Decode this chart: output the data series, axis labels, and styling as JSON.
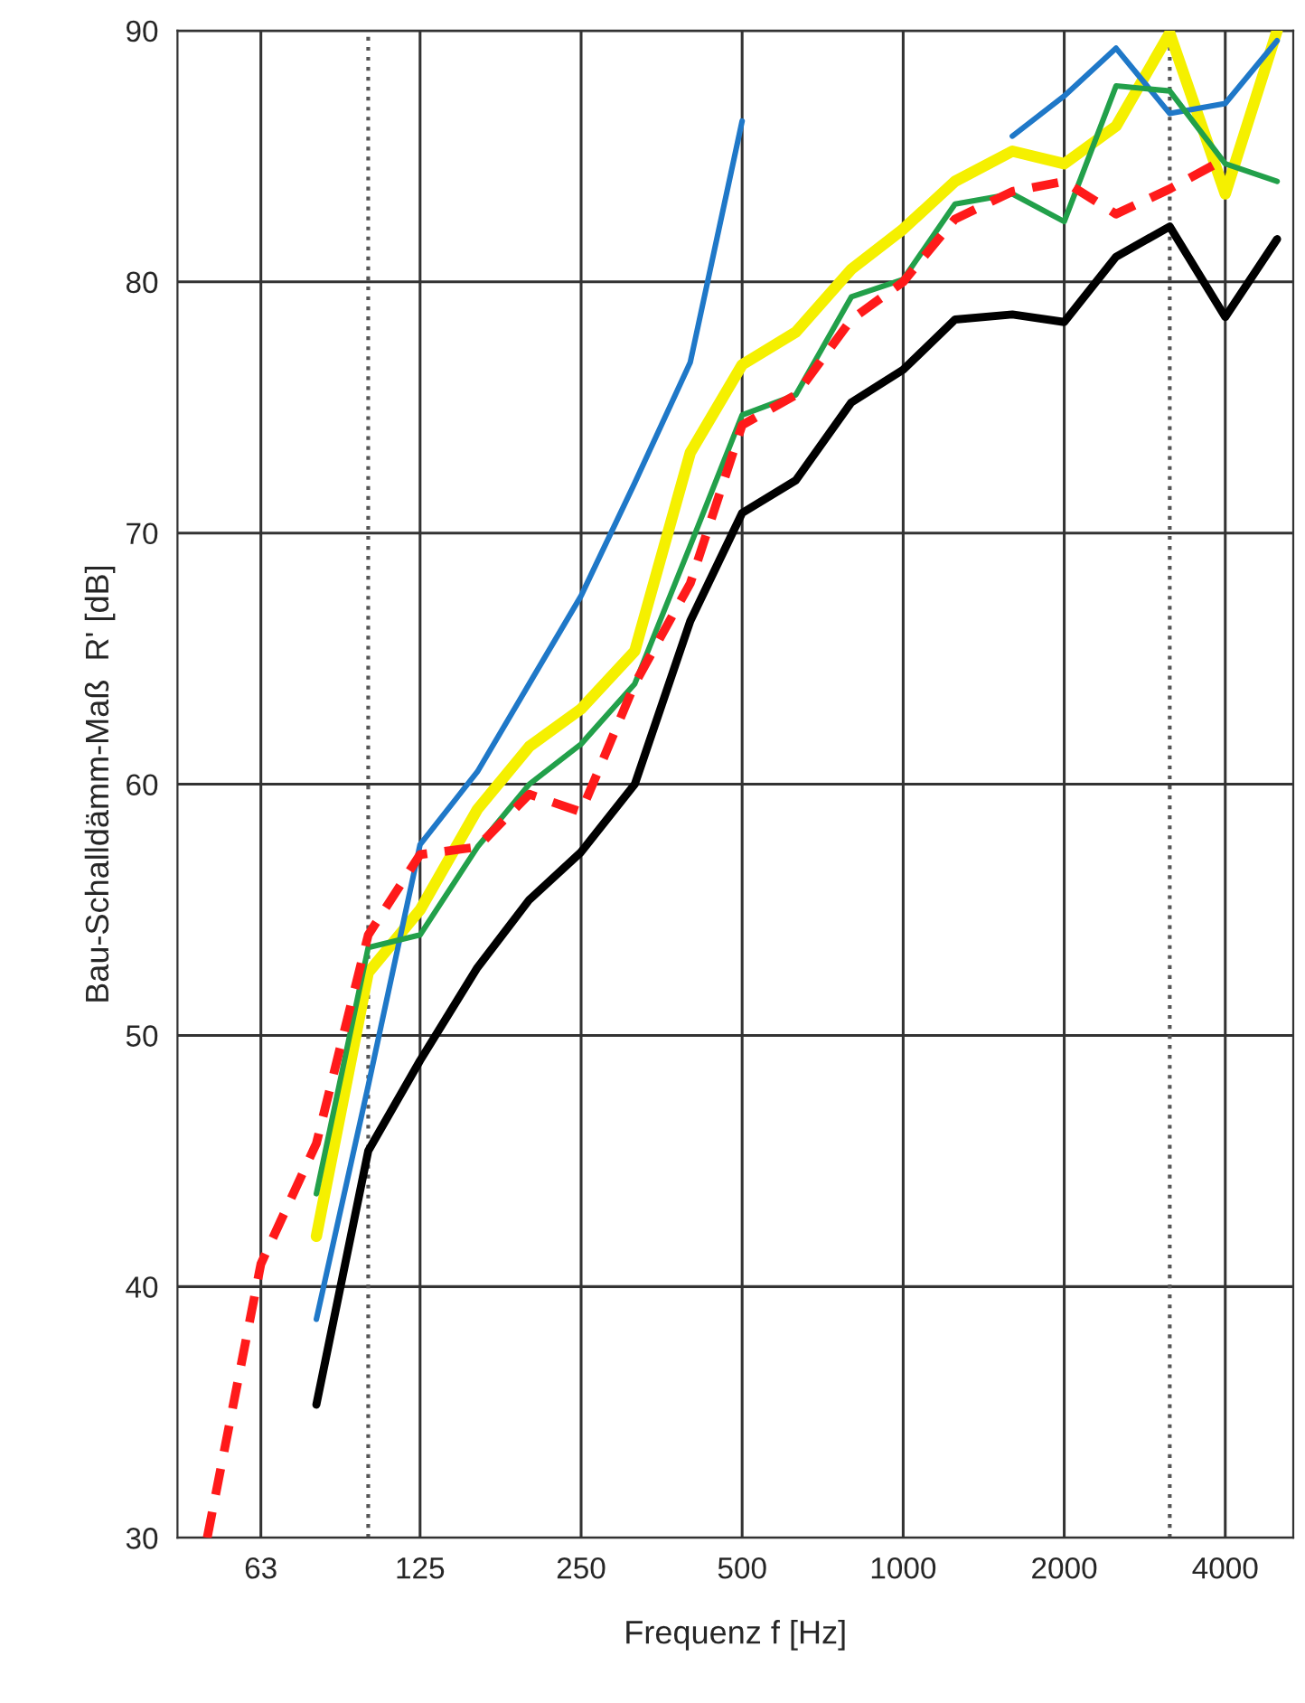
{
  "chart_data": {
    "type": "line",
    "xlabel": "Frequenz f [Hz]",
    "ylabel": "Bau-Schalldämm-Maß  R' [dB]",
    "log": "x",
    "xlim": [
      44,
      5360
    ],
    "xticks": [
      63,
      125,
      250,
      500,
      1000,
      2000,
      4000
    ],
    "ylim": [
      30,
      90
    ],
    "yticks": [
      30,
      40,
      50,
      60,
      70,
      80,
      90
    ],
    "grid": true,
    "legend": false,
    "x": [
      80,
      100,
      125,
      160,
      200,
      250,
      315,
      400,
      500,
      630,
      800,
      1000,
      1250,
      1600,
      2000,
      2500,
      3150,
      4000,
      5000
    ],
    "ref_lines": [
      {
        "axis": "x",
        "value": 100,
        "line_style": "dotted",
        "color": "#555555"
      },
      {
        "axis": "x",
        "value": 3150,
        "line_style": "dotted",
        "color": "#555555"
      }
    ],
    "series": [
      {
        "color": "#f5f000",
        "values": [
          42,
          52.5,
          55,
          59,
          61.5,
          63,
          65.3,
          73.2,
          76.7,
          78,
          80.5,
          82.1,
          84,
          85.2,
          84.7,
          86.2,
          89.9,
          83.5,
          90
        ]
      },
      {
        "color": "#1f78c8",
        "values": [
          38.7,
          48,
          57.6,
          60.5,
          64,
          67.5,
          72,
          76.8,
          86.4,
          null,
          null,
          null,
          null,
          85.8,
          87.4,
          89.3,
          86.7,
          87.1,
          89.6
        ]
      },
      {
        "color": "#22a04a",
        "values": [
          43.7,
          53.5,
          54,
          57.5,
          60,
          61.6,
          64,
          69.5,
          74.7,
          75.5,
          79.4,
          80.1,
          83.1,
          83.5,
          82.4,
          87.8,
          87.6,
          84.7,
          84
        ]
      },
      {
        "color": "#ff1a1a",
        "line_style": "dashed",
        "x": [
          50,
          63,
          80,
          100,
          125,
          160,
          200,
          250,
          315,
          400,
          500,
          630,
          800,
          1000,
          1250,
          1600,
          2000,
          2500,
          3150,
          4000
        ],
        "values": [
          30,
          40.9,
          45.7,
          54,
          57.2,
          57.5,
          59.6,
          58.9,
          64,
          68,
          74.3,
          75.5,
          78.5,
          80,
          82.5,
          83.6,
          84,
          82.7,
          83.7,
          84.9
        ]
      },
      {
        "color": "#000000",
        "values": [
          35.3,
          45.4,
          49,
          52.7,
          55.4,
          57.3,
          60,
          66.5,
          70.8,
          72.1,
          75.2,
          76.5,
          78.5,
          78.7,
          78.4,
          81,
          82.2,
          78.6,
          81.7
        ]
      }
    ]
  }
}
